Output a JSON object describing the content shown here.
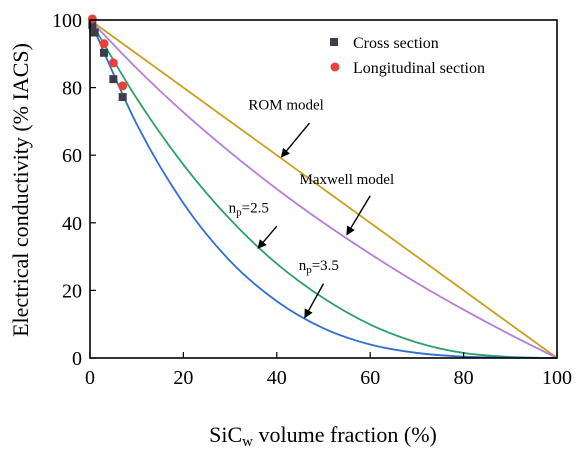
{
  "chart_data": {
    "type": "line",
    "xlabel_main": "SiC",
    "xlabel_sub": "w",
    "xlabel_rest": " volume fraction (%)",
    "ylabel": "Electrical conductivity (% IACS)",
    "xlim": [
      0,
      100
    ],
    "ylim": [
      0,
      100
    ],
    "xticks": [
      0,
      20,
      40,
      60,
      80,
      100
    ],
    "yticks": [
      0,
      20,
      40,
      60,
      80,
      100
    ],
    "grid": false,
    "legend_position": "top-right",
    "series": [
      {
        "name": "ROM model",
        "kind": "line",
        "color": "#C8A020",
        "x": [
          0,
          100
        ],
        "y": [
          100,
          0
        ]
      },
      {
        "name": "Maxwell model",
        "kind": "line",
        "color": "#B57EDC",
        "x": [
          0,
          10,
          20,
          30,
          40,
          50,
          60,
          70,
          80,
          90,
          100
        ],
        "y": [
          100,
          85.7,
          72.7,
          60.9,
          50.0,
          40.0,
          30.8,
          22.2,
          14.3,
          6.9,
          0
        ]
      },
      {
        "name": "np=2.5",
        "kind": "line",
        "color": "#2EA06A",
        "x": [
          0,
          10,
          20,
          30,
          40,
          50,
          60,
          70,
          80,
          90,
          100
        ],
        "y": [
          100,
          76.8,
          57.2,
          41.0,
          27.9,
          17.7,
          9.9,
          4.6,
          1.5,
          0.3,
          0
        ]
      },
      {
        "name": "np=3.5",
        "kind": "line",
        "color": "#2F6FD0",
        "x": [
          0,
          10,
          20,
          30,
          40,
          50,
          60,
          70,
          80,
          90,
          100
        ],
        "y": [
          100,
          69.2,
          45.8,
          28.7,
          16.8,
          8.8,
          4.0,
          1.5,
          0.4,
          0.1,
          0
        ]
      },
      {
        "name": "Cross section",
        "kind": "scatter",
        "marker": "square",
        "color": "#3d3d4d",
        "x": [
          0.5,
          1,
          3,
          5,
          7
        ],
        "y": [
          98.5,
          96.3,
          90.3,
          82.5,
          77.2
        ]
      },
      {
        "name": "Longitudinal section",
        "kind": "scatter",
        "marker": "circle",
        "color": "#E8413C",
        "x": [
          0.5,
          3,
          5,
          7
        ],
        "y": [
          100.3,
          93,
          87.3,
          80.5
        ]
      }
    ],
    "legend": [
      {
        "label": "Cross section",
        "marker": "square",
        "color": "#3d3d4d"
      },
      {
        "label": "Longitudinal section",
        "marker": "circle",
        "color": "#E8413C"
      }
    ],
    "annotations": [
      {
        "text": "ROM model",
        "sub": "",
        "rest": "",
        "tx": 42,
        "ty": 73.5,
        "ax": 41,
        "ay": 59.5,
        "tail_x": 47,
        "tail_y": 69.5
      },
      {
        "text": "Maxwell model",
        "sub": "",
        "rest": "",
        "tx": 55,
        "ty": 51.5,
        "ax": 55,
        "ay": 36.5,
        "tail_x": 60,
        "tail_y": 48
      },
      {
        "text": "n",
        "sub": "p",
        "rest": "=2.5",
        "tx": 34,
        "ty": 43,
        "ax": 36,
        "ay": 32.5,
        "tail_x": 40,
        "tail_y": 39
      },
      {
        "text": "n",
        "sub": "p",
        "rest": "=3.5",
        "tx": 49,
        "ty": 26,
        "ax": 46,
        "ay": 12,
        "tail_x": 50,
        "tail_y": 22
      }
    ]
  }
}
